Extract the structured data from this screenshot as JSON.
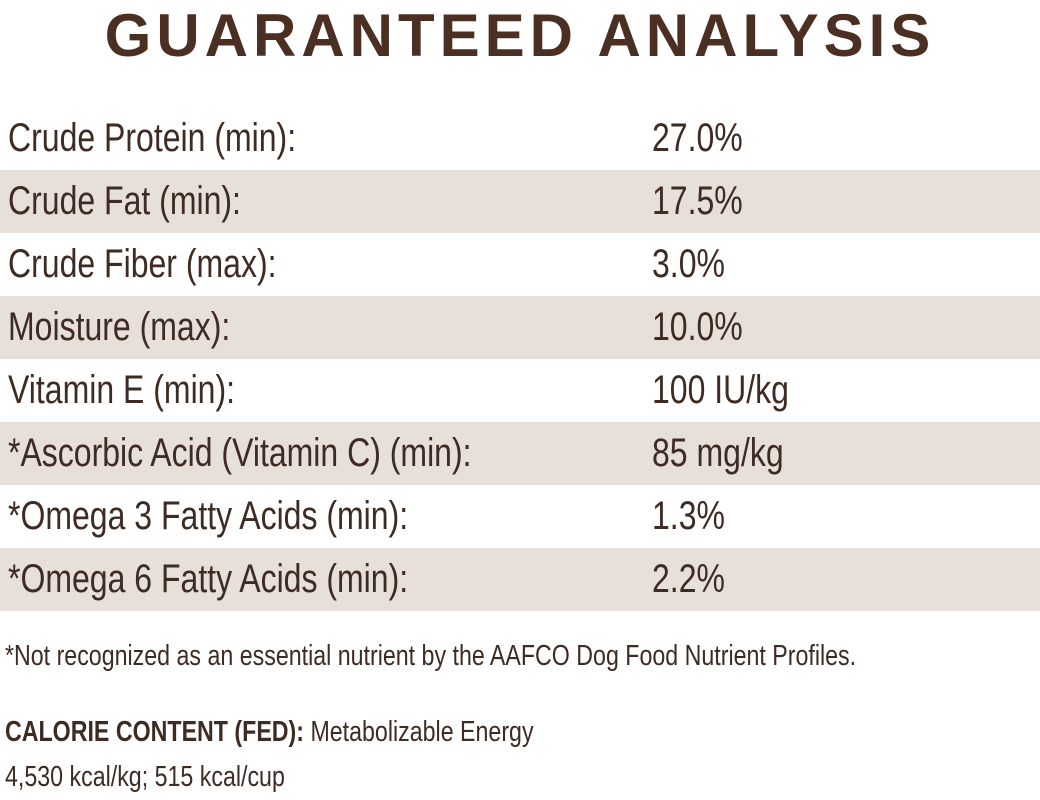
{
  "header": {
    "title": "GUARANTEED ANALYSIS"
  },
  "table": {
    "rows": [
      [
        "Crude Protein (min):",
        "27.0%"
      ],
      [
        "Crude Fat (min):",
        "17.5%"
      ],
      [
        "Crude Fiber (max):",
        "3.0%"
      ],
      [
        "Moisture (max):",
        "10.0%"
      ],
      [
        "Vitamin E (min):",
        "100 IU/kg"
      ],
      [
        "*Ascorbic Acid (Vitamin C) (min):",
        "85 mg/kg"
      ],
      [
        "*Omega 3 Fatty Acids (min):",
        "1.3%"
      ],
      [
        "*Omega 6 Fatty Acids (min):",
        "2.2%"
      ]
    ]
  },
  "footnote": "*Not recognized as an essential nutrient by the AAFCO Dog Food Nutrient Profiles.",
  "calorie": {
    "label": "CALORIE CONTENT (FED):",
    "text": "Metabolizable Energy",
    "value": "4,530 kcal/kg; 515 kcal/cup"
  }
}
